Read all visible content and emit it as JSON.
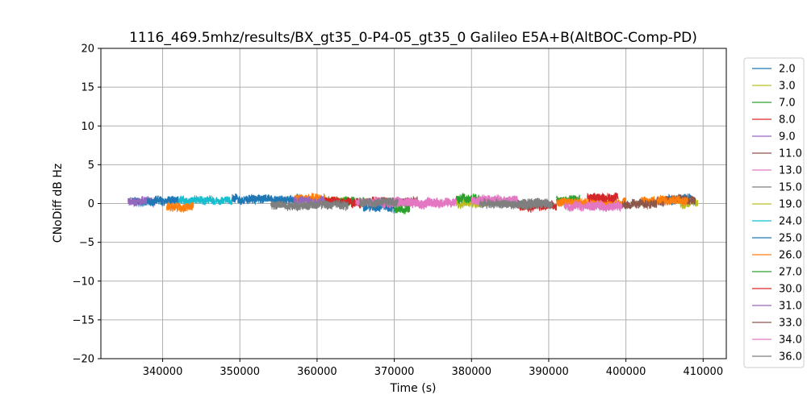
{
  "chart_data": {
    "type": "line",
    "title": "1116_469.5mhz/results/BX_gt35_0-P4-05_gt35_0 Galileo E5A+B(AltBOC-Comp-PD)",
    "xlabel": "Time (s)",
    "ylabel": "CNoDiff dB Hz",
    "xlim": [
      332000,
      413000
    ],
    "ylim": [
      -20,
      20
    ],
    "xticks": [
      340000,
      350000,
      360000,
      370000,
      380000,
      390000,
      400000,
      410000
    ],
    "xtick_labels": [
      "340000",
      "350000",
      "360000",
      "370000",
      "380000",
      "390000",
      "400000",
      "410000"
    ],
    "yticks": [
      20,
      15,
      10,
      5,
      0,
      -5,
      -10,
      -15,
      -20
    ],
    "ytick_labels": [
      "20",
      "15",
      "10",
      "5",
      "0",
      "−5",
      "−10",
      "−15",
      "−20"
    ],
    "grid": true,
    "legend_position": "right",
    "series": [
      {
        "name": "2.0",
        "color": "#1f77b4",
        "segments": [
          [
            336000,
            338000,
            0.2
          ],
          [
            405000,
            409000,
            0.5
          ]
        ]
      },
      {
        "name": "3.0",
        "color": "#bcbd22",
        "segments": [
          [
            361000,
            364000,
            0.3
          ],
          [
            407000,
            409300,
            0.0
          ]
        ]
      },
      {
        "name": "7.0",
        "color": "#2ca02c",
        "segments": [
          [
            363000,
            367000,
            0.3
          ],
          [
            391000,
            394000,
            0.4
          ]
        ]
      },
      {
        "name": "8.0",
        "color": "#d62728",
        "segments": [
          [
            360000,
            369000,
            0.2
          ],
          [
            386000,
            391000,
            -0.3
          ]
        ]
      },
      {
        "name": "9.0",
        "color": "#9467bd",
        "segments": [
          [
            335500,
            339000,
            0.3
          ]
        ]
      },
      {
        "name": "11.0",
        "color": "#8c564b",
        "segments": [
          [
            368000,
            373000,
            0.2
          ],
          [
            404000,
            409000,
            0.5
          ]
        ]
      },
      {
        "name": "13.0",
        "color": "#e377c2",
        "segments": [
          [
            370000,
            376000,
            0.2
          ],
          [
            395000,
            399500,
            -0.4
          ]
        ]
      },
      {
        "name": "15.0",
        "color": "#7f7f7f",
        "segments": [
          [
            383000,
            390000,
            0.1
          ]
        ]
      },
      {
        "name": "19.0",
        "color": "#bcbd22",
        "segments": [
          [
            378000,
            382000,
            0.1
          ]
        ]
      },
      {
        "name": "24.0",
        "color": "#17becf",
        "segments": [
          [
            342000,
            349000,
            0.4
          ]
        ]
      },
      {
        "name": "25.0",
        "color": "#1f77b4",
        "segments": [
          [
            338000,
            342000,
            0.4
          ],
          [
            349000,
            358000,
            0.6
          ],
          [
            366000,
            370000,
            -0.5
          ]
        ]
      },
      {
        "name": "26.0",
        "color": "#ff7f0e",
        "segments": [
          [
            340500,
            344000,
            -0.5
          ],
          [
            357000,
            361000,
            0.6
          ],
          [
            391000,
            400000,
            0.2
          ],
          [
            402000,
            408000,
            0.4
          ]
        ]
      },
      {
        "name": "27.0",
        "color": "#2ca02c",
        "segments": [
          [
            370000,
            372000,
            -0.7
          ],
          [
            378000,
            381000,
            0.6
          ]
        ]
      },
      {
        "name": "30.0",
        "color": "#d62728",
        "segments": [
          [
            361000,
            363000,
            0.3
          ],
          [
            395000,
            399000,
            0.8
          ]
        ]
      },
      {
        "name": "31.0",
        "color": "#9467bd",
        "segments": [
          [
            357000,
            361000,
            0.4
          ]
        ]
      },
      {
        "name": "33.0",
        "color": "#8c564b",
        "segments": [
          [
            399500,
            404000,
            -0.1
          ]
        ]
      },
      {
        "name": "34.0",
        "color": "#e377c2",
        "segments": [
          [
            365000,
            378000,
            0.1
          ],
          [
            380000,
            386000,
            0.5
          ],
          [
            392000,
            399500,
            -0.3
          ]
        ]
      },
      {
        "name": "36.0",
        "color": "#7f7f7f",
        "segments": [
          [
            354000,
            364000,
            -0.2
          ],
          [
            365500,
            370500,
            0.1
          ],
          [
            381000,
            390500,
            -0.1
          ]
        ]
      }
    ]
  }
}
